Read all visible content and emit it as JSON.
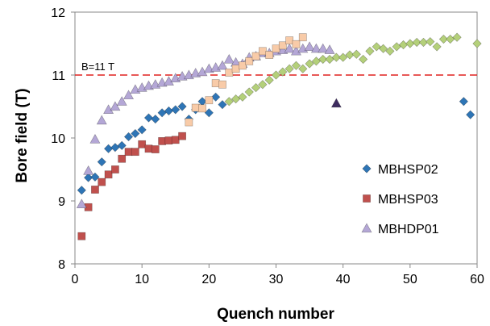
{
  "chart_data": {
    "type": "scatter",
    "xlabel": "Quench number",
    "ylabel": "Bore field (T)",
    "xlim": [
      0,
      60
    ],
    "ylim": [
      8,
      12
    ],
    "xticks": [
      0,
      10,
      20,
      30,
      40,
      50,
      60
    ],
    "yticks": [
      8,
      9,
      10,
      11,
      12
    ],
    "grid": false,
    "legend_position": "right",
    "reference_line": {
      "y": 11,
      "label": "B=11 T",
      "color": "#e0201f",
      "style": "dashed"
    },
    "series": [
      {
        "name": "MBHSP02",
        "marker": "diamond",
        "color": "#2e75b6",
        "points": [
          [
            1,
            9.17
          ],
          [
            2,
            9.37
          ],
          [
            3,
            9.38
          ],
          [
            4,
            9.62
          ],
          [
            5,
            9.83
          ],
          [
            6,
            9.85
          ],
          [
            7,
            9.88
          ],
          [
            8,
            10.02
          ],
          [
            9,
            10.07
          ],
          [
            10,
            10.13
          ],
          [
            11,
            10.32
          ],
          [
            12,
            10.3
          ],
          [
            13,
            10.4
          ],
          [
            14,
            10.43
          ],
          [
            15,
            10.45
          ],
          [
            16,
            10.5
          ],
          [
            17,
            10.3
          ],
          [
            18,
            10.45
          ],
          [
            19,
            10.58
          ],
          [
            20,
            10.4
          ],
          [
            21,
            10.65
          ],
          [
            22,
            10.53
          ]
        ]
      },
      {
        "name": "MBHSP03",
        "marker": "square",
        "color": "#c0504d",
        "points": [
          [
            1,
            8.44
          ],
          [
            2,
            8.9
          ],
          [
            3,
            9.18
          ],
          [
            4,
            9.3
          ],
          [
            5,
            9.42
          ],
          [
            6,
            9.5
          ],
          [
            7,
            9.67
          ],
          [
            8,
            9.78
          ],
          [
            9,
            9.78
          ],
          [
            10,
            9.9
          ],
          [
            11,
            9.83
          ],
          [
            12,
            9.82
          ],
          [
            13,
            9.95
          ],
          [
            14,
            9.96
          ],
          [
            15,
            9.97
          ],
          [
            16,
            10.03
          ]
        ]
      },
      {
        "name": "MBHDP01",
        "marker": "triangle",
        "color": "#b4a7d6",
        "points": [
          [
            1,
            8.95
          ],
          [
            2,
            9.48
          ],
          [
            3,
            9.98
          ],
          [
            4,
            10.28
          ],
          [
            5,
            10.45
          ],
          [
            6,
            10.5
          ],
          [
            7,
            10.58
          ],
          [
            8,
            10.68
          ],
          [
            9,
            10.77
          ],
          [
            10,
            10.8
          ],
          [
            11,
            10.83
          ],
          [
            12,
            10.85
          ],
          [
            13,
            10.88
          ],
          [
            14,
            10.9
          ],
          [
            15,
            10.95
          ],
          [
            16,
            10.98
          ],
          [
            17,
            11.0
          ],
          [
            18,
            11.03
          ],
          [
            19,
            11.05
          ],
          [
            20,
            11.1
          ],
          [
            21,
            11.12
          ],
          [
            22,
            11.15
          ],
          [
            23,
            11.25
          ],
          [
            24,
            11.2
          ],
          [
            25,
            11.18
          ],
          [
            26,
            11.28
          ],
          [
            27,
            11.3
          ],
          [
            28,
            11.35
          ],
          [
            29,
            11.35
          ],
          [
            30,
            11.38
          ],
          [
            31,
            11.4
          ],
          [
            32,
            11.42
          ],
          [
            33,
            11.38
          ],
          [
            34,
            11.42
          ],
          [
            35,
            11.45
          ],
          [
            36,
            11.42
          ],
          [
            37,
            11.42
          ],
          [
            38,
            11.4
          ]
        ]
      },
      {
        "name": "",
        "marker": "square",
        "color": "#f8cba8",
        "points": [
          [
            17,
            10.25
          ],
          [
            18,
            10.48
          ],
          [
            19,
            10.47
          ],
          [
            20,
            10.6
          ],
          [
            21,
            10.87
          ],
          [
            22,
            10.85
          ],
          [
            23,
            11.04
          ],
          [
            24,
            11.1
          ],
          [
            25,
            11.15
          ],
          [
            26,
            11.22
          ],
          [
            27,
            11.3
          ],
          [
            28,
            11.38
          ],
          [
            29,
            11.32
          ],
          [
            30,
            11.42
          ],
          [
            31,
            11.47
          ],
          [
            32,
            11.55
          ],
          [
            33,
            11.49
          ],
          [
            34,
            11.6
          ]
        ]
      },
      {
        "name": "",
        "marker": "diamond",
        "color": "#b4d07a",
        "points": [
          [
            23,
            10.58
          ],
          [
            24,
            10.62
          ],
          [
            25,
            10.65
          ],
          [
            26,
            10.73
          ],
          [
            27,
            10.8
          ],
          [
            28,
            10.85
          ],
          [
            29,
            10.92
          ],
          [
            30,
            11.0
          ],
          [
            31,
            11.05
          ],
          [
            32,
            11.1
          ],
          [
            33,
            11.15
          ],
          [
            34,
            11.1
          ],
          [
            35,
            11.18
          ],
          [
            36,
            11.22
          ],
          [
            37,
            11.25
          ],
          [
            38,
            11.25
          ],
          [
            39,
            11.28
          ],
          [
            40,
            11.28
          ],
          [
            41,
            11.32
          ],
          [
            42,
            11.33
          ],
          [
            43,
            11.25
          ],
          [
            44,
            11.38
          ],
          [
            45,
            11.45
          ],
          [
            46,
            11.42
          ],
          [
            47,
            11.38
          ],
          [
            48,
            11.45
          ],
          [
            49,
            11.48
          ],
          [
            50,
            11.5
          ],
          [
            51,
            11.52
          ],
          [
            52,
            11.52
          ],
          [
            53,
            11.53
          ],
          [
            54,
            11.45
          ],
          [
            55,
            11.57
          ],
          [
            56,
            11.57
          ],
          [
            57,
            11.6
          ],
          [
            60,
            11.5
          ]
        ]
      },
      {
        "name": "",
        "marker": "triangle",
        "color": "#3d2b5f",
        "points": [
          [
            39,
            10.55
          ]
        ]
      },
      {
        "name": "",
        "marker": "diamond",
        "color": "#2e75b6",
        "points": [
          [
            58,
            10.58
          ],
          [
            59,
            10.37
          ]
        ]
      }
    ]
  }
}
